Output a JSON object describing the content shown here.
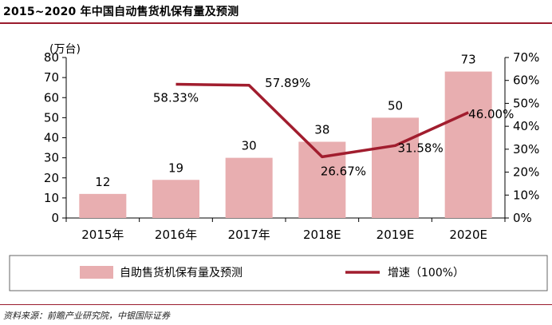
{
  "title": "2015~2020 年中国自动售货机保有量及预测",
  "source": "资料来源：前瞻产业研究院，中银国际证券",
  "colors": {
    "bar": "#e8aeb0",
    "line": "#a11d2e",
    "rule": "#9a1b2d"
  },
  "chart_data": {
    "type": "bar",
    "categories": [
      "2015年",
      "2016年",
      "2017年",
      "2018E",
      "2019E",
      "2020E"
    ],
    "series": [
      {
        "name": "自助售货机保有量及预测",
        "type": "bar",
        "axis": "left",
        "values": [
          12,
          19,
          30,
          38,
          50,
          73
        ],
        "labels": [
          "12",
          "19",
          "30",
          "38",
          "50",
          "73"
        ]
      },
      {
        "name": "增速（100%）",
        "type": "line",
        "axis": "right",
        "values": [
          null,
          58.33,
          57.89,
          26.67,
          31.58,
          46.0
        ],
        "labels": [
          "",
          "58.33%",
          "57.89%",
          "26.67%",
          "31.58%",
          "46.00%"
        ]
      }
    ],
    "y_left": {
      "label": "(万台)",
      "min": 0,
      "max": 80,
      "ticks": [
        "0",
        "10",
        "20",
        "30",
        "40",
        "50",
        "60",
        "70",
        "80"
      ]
    },
    "y_right": {
      "min": 0,
      "max": 70,
      "ticks": [
        "0%",
        "10%",
        "20%",
        "30%",
        "40%",
        "50%",
        "60%",
        "70%"
      ]
    },
    "grid": false,
    "legend_position": "bottom"
  }
}
